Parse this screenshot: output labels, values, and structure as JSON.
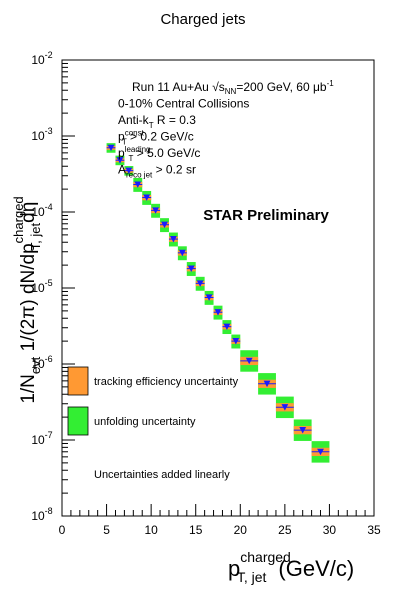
{
  "chart_data": {
    "type": "scatter",
    "title": "Charged jets",
    "xlabel": {
      "main": "p",
      "sup": "charged",
      "sub": "T, jet",
      "unit": "(GeV/c)"
    },
    "ylabel": {
      "prefix": "1/N",
      "prefix_sub": "evt",
      "middle": " 1/(2π) dN/dp",
      "middle_sup": "charged",
      "middle_sub": "T, jet",
      "suffix": "dη"
    },
    "xlim": [
      0,
      35
    ],
    "ylim_log10": [
      -8,
      -2
    ],
    "x_ticks": [
      0,
      5,
      10,
      15,
      20,
      25,
      30,
      35
    ],
    "y_ticks": [
      {
        "value": -8,
        "label": "-8"
      },
      {
        "value": -7,
        "label": "-7"
      },
      {
        "value": -6,
        "label": "-6"
      },
      {
        "value": -5,
        "label": "-5"
      },
      {
        "value": -4,
        "label": "-4"
      },
      {
        "value": -3,
        "label": "-3"
      },
      {
        "value": -2,
        "label": "-2"
      }
    ],
    "y_tick_base": "10",
    "watermark": "STAR Preliminary",
    "info_lines": [
      {
        "text": "Run 11 Au+Au ",
        "extra": "√s",
        "extra_sub": "NN",
        "rest": "=200 GeV, 60 μb",
        "rest_sup": "-1"
      },
      {
        "text": "0-10% Central Collisions"
      },
      {
        "text": "Anti-k",
        "sub": "T",
        "rest": "   R = 0.3"
      },
      {
        "text": "p",
        "sup": "const",
        "sub": "T",
        "rest": " > 0.2 GeV/c"
      },
      {
        "text": "p",
        "sup": "leading",
        "sub": "T",
        "rest": " > 5.0 GeV/c"
      },
      {
        "text": "A",
        "sub": "reco jet",
        "rest": "  > 0.2 sr"
      }
    ],
    "legend": {
      "placement": "bottom-left",
      "entries": [
        {
          "label": "tracking efficiency uncertainty",
          "color": "#ff9933"
        },
        {
          "label": "unfolding uncertainty",
          "color": "#33ee33"
        }
      ],
      "note": "Uncertainties added linearly"
    },
    "colors": {
      "marker": "#1a1aff",
      "tracking_box": "#ff9933",
      "unfolding_box": "#33ee33"
    },
    "points": [
      {
        "x": 5.5,
        "y": 0.0007,
        "xerr": 0.5,
        "unf_lo": 0.86,
        "unf_hi": 1.15,
        "trk_lo": 0.94,
        "trk_hi": 1.06
      },
      {
        "x": 6.5,
        "y": 0.00048,
        "xerr": 0.5,
        "unf_lo": 0.86,
        "unf_hi": 1.15,
        "trk_lo": 0.94,
        "trk_hi": 1.06
      },
      {
        "x": 7.5,
        "y": 0.00035,
        "xerr": 0.5,
        "unf_lo": 0.86,
        "unf_hi": 1.15,
        "trk_lo": 0.94,
        "trk_hi": 1.06
      },
      {
        "x": 8.5,
        "y": 0.00023,
        "xerr": 0.5,
        "unf_lo": 0.8,
        "unf_hi": 1.22,
        "trk_lo": 0.92,
        "trk_hi": 1.08
      },
      {
        "x": 9.5,
        "y": 0.000155,
        "xerr": 0.5,
        "unf_lo": 0.8,
        "unf_hi": 1.22,
        "trk_lo": 0.92,
        "trk_hi": 1.08
      },
      {
        "x": 10.5,
        "y": 0.000105,
        "xerr": 0.5,
        "unf_lo": 0.8,
        "unf_hi": 1.22,
        "trk_lo": 0.92,
        "trk_hi": 1.08
      },
      {
        "x": 11.5,
        "y": 6.8e-05,
        "xerr": 0.5,
        "unf_lo": 0.8,
        "unf_hi": 1.22,
        "trk_lo": 0.92,
        "trk_hi": 1.08
      },
      {
        "x": 12.5,
        "y": 4.4e-05,
        "xerr": 0.5,
        "unf_lo": 0.8,
        "unf_hi": 1.22,
        "trk_lo": 0.92,
        "trk_hi": 1.08
      },
      {
        "x": 13.5,
        "y": 2.9e-05,
        "xerr": 0.5,
        "unf_lo": 0.8,
        "unf_hi": 1.22,
        "trk_lo": 0.92,
        "trk_hi": 1.08
      },
      {
        "x": 14.5,
        "y": 1.8e-05,
        "xerr": 0.5,
        "unf_lo": 0.8,
        "unf_hi": 1.22,
        "trk_lo": 0.92,
        "trk_hi": 1.08
      },
      {
        "x": 15.5,
        "y": 1.15e-05,
        "xerr": 0.5,
        "unf_lo": 0.8,
        "unf_hi": 1.22,
        "trk_lo": 0.92,
        "trk_hi": 1.08
      },
      {
        "x": 16.5,
        "y": 7.5e-06,
        "xerr": 0.5,
        "unf_lo": 0.8,
        "unf_hi": 1.22,
        "trk_lo": 0.92,
        "trk_hi": 1.08
      },
      {
        "x": 17.5,
        "y": 4.8e-06,
        "xerr": 0.5,
        "unf_lo": 0.8,
        "unf_hi": 1.22,
        "trk_lo": 0.92,
        "trk_hi": 1.08
      },
      {
        "x": 18.5,
        "y": 3.1e-06,
        "xerr": 0.5,
        "unf_lo": 0.8,
        "unf_hi": 1.22,
        "trk_lo": 0.92,
        "trk_hi": 1.08
      },
      {
        "x": 19.5,
        "y": 2e-06,
        "xerr": 0.5,
        "unf_lo": 0.8,
        "unf_hi": 1.22,
        "trk_lo": 0.92,
        "trk_hi": 1.08
      },
      {
        "x": 21.0,
        "y": 1.1e-06,
        "xerr": 1.0,
        "unf_lo": 0.72,
        "unf_hi": 1.38,
        "trk_lo": 0.88,
        "trk_hi": 1.13
      },
      {
        "x": 23.0,
        "y": 5.5e-07,
        "xerr": 1.0,
        "unf_lo": 0.72,
        "unf_hi": 1.38,
        "trk_lo": 0.88,
        "trk_hi": 1.13
      },
      {
        "x": 25.0,
        "y": 2.7e-07,
        "xerr": 1.0,
        "unf_lo": 0.72,
        "unf_hi": 1.38,
        "trk_lo": 0.88,
        "trk_hi": 1.13
      },
      {
        "x": 27.0,
        "y": 1.35e-07,
        "xerr": 1.0,
        "unf_lo": 0.72,
        "unf_hi": 1.38,
        "trk_lo": 0.88,
        "trk_hi": 1.13
      },
      {
        "x": 29.0,
        "y": 7e-08,
        "xerr": 1.0,
        "unf_lo": 0.72,
        "unf_hi": 1.38,
        "trk_lo": 0.88,
        "trk_hi": 1.13
      }
    ]
  }
}
